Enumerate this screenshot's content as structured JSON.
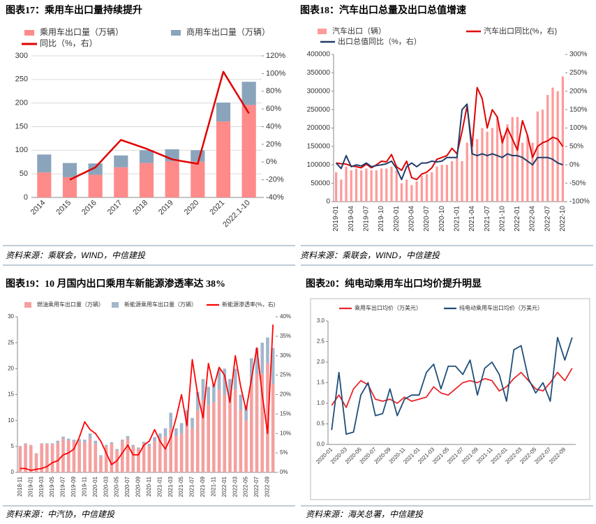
{
  "chart_data": [
    {
      "type": "bar",
      "title": "图表17：乘用车出口量持续提升",
      "source": "资料来源：乘联会，WIND，中信建投",
      "stacked": true,
      "grid": true,
      "categories": [
        "2014",
        "2015",
        "2016",
        "2017",
        "2018",
        "2019",
        "2020",
        "2021",
        "2022.1-10"
      ],
      "series": [
        {
          "name": "乘用车出口量（万辆）",
          "type": "bar",
          "color": "#ff8a8a",
          "values": [
            53,
            43,
            48,
            64,
            73,
            77,
            76,
            161,
            196
          ]
        },
        {
          "name": "商用车出口量（万辆）",
          "type": "bar",
          "color": "#8aa4bc",
          "values": [
            38,
            30,
            24,
            25,
            27,
            25,
            24,
            40,
            49
          ]
        },
        {
          "name": "同比（%，右）",
          "type": "line",
          "axis": "y2",
          "color": "#e00000",
          "values": [
            null,
            -20,
            -6,
            25,
            15,
            3,
            -2,
            102,
            55
          ]
        }
      ],
      "ylim": [
        0,
        300
      ],
      "yticks": [
        0,
        50,
        100,
        150,
        200,
        250,
        300
      ],
      "y2lim": [
        -40,
        120
      ],
      "y2ticks": [
        {
          "value": -40,
          "label": "-40%"
        },
        {
          "value": -20,
          "label": "-20%"
        },
        {
          "value": 0,
          "label": "0%"
        },
        {
          "value": 20,
          "label": "20%"
        },
        {
          "value": 40,
          "label": "40%"
        },
        {
          "value": 60,
          "label": "60%"
        },
        {
          "value": 80,
          "label": "80%"
        },
        {
          "value": 100,
          "label": "100%"
        },
        {
          "value": 120,
          "label": "120%"
        }
      ]
    },
    {
      "type": "bar",
      "title": "图表18：汽车出口总量及出口总值增速",
      "source": "资料来源：乘联会，WIND，中信建投",
      "stacked": false,
      "grid": false,
      "categories": [
        "2019-01",
        null,
        null,
        "2019-04",
        null,
        null,
        "2019-07",
        null,
        null,
        "2019-10",
        null,
        null,
        "2020-01",
        null,
        null,
        "2020-04",
        null,
        null,
        "2020-07",
        null,
        null,
        "2020-10",
        null,
        null,
        "2021-01",
        null,
        null,
        "2021-04",
        null,
        null,
        "2021-07",
        null,
        null,
        "2021-10",
        null,
        null,
        "2022-01",
        null,
        null,
        "2022-04",
        null,
        null,
        "2022-07",
        null,
        null,
        "2022-10"
      ],
      "series": [
        {
          "name": "汽车出口（辆）",
          "type": "bar",
          "color": "#ff9a9a",
          "values": [
            80000,
            60000,
            95000,
            85000,
            90000,
            85000,
            90000,
            85000,
            85000,
            90000,
            90000,
            95000,
            85000,
            50000,
            60000,
            45000,
            55000,
            70000,
            75000,
            80000,
            95000,
            100000,
            100000,
            110000,
            120000,
            110000,
            160000,
            170000,
            170000,
            200000,
            190000,
            200000,
            230000,
            180000,
            210000,
            230000,
            230000,
            160000,
            180000,
            160000,
            245000,
            250000,
            290000,
            310000,
            300000,
            340000
          ]
        },
        {
          "name": "汽车出口同比(%，右)",
          "type": "line",
          "axis": "y2",
          "color": "#e00000",
          "values": [
            5,
            3,
            2,
            -3,
            -5,
            -8,
            2,
            -8,
            0,
            10,
            8,
            28,
            -5,
            -15,
            10,
            -35,
            -40,
            -25,
            -20,
            -8,
            15,
            20,
            25,
            45,
            30,
            90,
            160,
            50,
            210,
            180,
            100,
            150,
            130,
            60,
            100,
            70,
            40,
            120,
            80,
            20,
            50,
            60,
            65,
            75,
            70,
            50
          ]
        },
        {
          "name": "出口总值同比（%，右）",
          "type": "line",
          "axis": "y2",
          "color": "#1f3d6b",
          "values": [
            5,
            -10,
            25,
            -5,
            0,
            -3,
            5,
            -5,
            -2,
            0,
            3,
            10,
            -10,
            -40,
            -5,
            5,
            -5,
            5,
            5,
            10,
            8,
            10,
            20,
            20,
            20,
            150,
            165,
            30,
            25,
            30,
            25,
            30,
            25,
            20,
            30,
            25,
            25,
            20,
            10,
            0,
            20,
            20,
            20,
            15,
            5,
            0
          ]
        }
      ],
      "ylim": [
        0,
        400000
      ],
      "yticks": [
        0,
        50000,
        100000,
        150000,
        200000,
        250000,
        300000,
        350000,
        400000
      ],
      "y2lim": [
        -100,
        300
      ],
      "y2ticks": [
        {
          "value": -100,
          "label": "-100%"
        },
        {
          "value": -50,
          "label": "-50%"
        },
        {
          "value": 0,
          "label": "0%"
        },
        {
          "value": 50,
          "label": "50%"
        },
        {
          "value": 100,
          "label": "100%"
        },
        {
          "value": 150,
          "label": "150%"
        },
        {
          "value": 200,
          "label": "200%"
        },
        {
          "value": 250,
          "label": "250%"
        },
        {
          "value": 300,
          "label": "300%"
        }
      ]
    },
    {
      "type": "bar",
      "title": "图表19：10 月国内出口乘用车新能源渗透率达 38%",
      "source": "资料来源：中汽协，中信建投",
      "stacked": true,
      "grid": false,
      "categories": [
        "2018-11",
        null,
        "2019-01",
        null,
        "2019-03",
        null,
        "2019-05",
        null,
        "2019-07",
        null,
        "2019-09",
        null,
        "2019-11",
        null,
        "2020-01",
        null,
        "2020-03",
        null,
        "2020-05",
        null,
        "2020-07",
        null,
        "2020-09",
        null,
        "2020-11",
        null,
        "2021-01",
        null,
        "2021-03",
        null,
        "2021-05",
        null,
        "2021-07",
        null,
        "2021-09",
        null,
        "2021-11",
        null,
        "2022-01",
        null,
        "2022-03",
        null,
        "2022-05",
        null,
        "2022-07",
        null,
        "2022-09",
        null
      ],
      "series": [
        {
          "name": "燃油乘用车出口量（万辆）",
          "type": "bar",
          "color": "#f4a0a0",
          "values": [
            5.0,
            5.5,
            5.2,
            3.6,
            5.5,
            5.5,
            5.4,
            5.7,
            6.5,
            6.2,
            6.0,
            6.0,
            5.8,
            6.5,
            5.5,
            3.0,
            5.0,
            5.5,
            4.3,
            6.0,
            6.5,
            5.0,
            4.5,
            5.5,
            5.0,
            6.0,
            6.5,
            7.0,
            8.5,
            7.0,
            7.5,
            9.0,
            8.5,
            12,
            14,
            13,
            13.5,
            16,
            15,
            14,
            16,
            12,
            10,
            17,
            19,
            19,
            21,
            17
          ]
        },
        {
          "name": "新能源乘用车出口量（万辆）",
          "type": "bar",
          "color": "#a2b6cc",
          "values": [
            0.1,
            0.1,
            0.1,
            0.1,
            0.1,
            0.1,
            0.2,
            0.4,
            0.4,
            0.3,
            0.3,
            0.4,
            0.5,
            1.0,
            0.6,
            0.3,
            0.3,
            0.3,
            0.2,
            0.3,
            0.5,
            0.3,
            0.3,
            0.4,
            0.5,
            0.8,
            1.0,
            1.5,
            3.0,
            1.5,
            2.0,
            3.0,
            2.0,
            3.5,
            4.0,
            3.5,
            3.5,
            4.0,
            5,
            4,
            4,
            3,
            3,
            5,
            5,
            6,
            5,
            7
          ]
        },
        {
          "name": "新能源渗透率(%，右)",
          "type": "line",
          "axis": "y2",
          "color": "#ff0000",
          "values": [
            1.0,
            1.0,
            0.5,
            0.8,
            1.0,
            1.5,
            2.5,
            3.0,
            4.5,
            5.0,
            6.0,
            9.0,
            13.0,
            11.0,
            10,
            8,
            5,
            2,
            3,
            5,
            7,
            4.5,
            4.5,
            7,
            8,
            11,
            8,
            6,
            9,
            14,
            20,
            12,
            29,
            20,
            14,
            28,
            22,
            27,
            25,
            18,
            30,
            22,
            16,
            24,
            32,
            20,
            10,
            38
          ]
        }
      ],
      "ylim": [
        0,
        30
      ],
      "yticks": [
        0,
        5,
        10,
        15,
        20,
        25,
        30
      ],
      "y2lim": [
        0,
        40
      ],
      "y2ticks": [
        {
          "value": 0,
          "label": "0%"
        },
        {
          "value": 5,
          "label": "5%"
        },
        {
          "value": 10,
          "label": "10%"
        },
        {
          "value": 15,
          "label": "15%"
        },
        {
          "value": 20,
          "label": "20%"
        },
        {
          "value": 25,
          "label": "25%"
        },
        {
          "value": 30,
          "label": "30%"
        },
        {
          "value": 35,
          "label": "35%"
        },
        {
          "value": 40,
          "label": "40%"
        }
      ]
    },
    {
      "type": "line",
      "title": "图表20：纯电动乘用车出口均价提升明显",
      "source": "资料来源：海关总署，中信建投",
      "stacked": false,
      "grid": false,
      "categories": [
        "2020-01",
        null,
        "2020-03",
        null,
        "2020-05",
        null,
        "2020-07",
        null,
        "2020-09",
        null,
        "2020-11",
        null,
        "2021-01",
        null,
        "2021-03",
        null,
        "2021-05",
        null,
        "2021-07",
        null,
        "2021-09",
        null,
        "2021-11",
        null,
        "2022-01",
        null,
        "2022-03",
        null,
        "2022-05",
        null,
        "2022-07",
        null,
        "2022-09",
        null
      ],
      "series": [
        {
          "name": "乘用车出口均价（万美元）",
          "type": "line",
          "color": "#e8262b",
          "values": [
            0.95,
            1.2,
            0.9,
            1.35,
            1.55,
            1.45,
            1.1,
            1.05,
            1.1,
            1.0,
            1.15,
            1.05,
            1.1,
            1.15,
            1.4,
            1.25,
            1.2,
            1.35,
            1.5,
            1.55,
            1.5,
            1.6,
            1.55,
            1.3,
            1.4,
            1.6,
            1.75,
            1.55,
            1.35,
            1.3,
            1.5,
            1.75,
            1.55,
            1.85
          ]
        },
        {
          "name": "纯电动乘用车出口均价（万美元）",
          "type": "line",
          "color": "#1f4e79",
          "values": [
            0.35,
            1.75,
            0.25,
            0.3,
            1.2,
            1.5,
            0.7,
            0.75,
            1.35,
            0.7,
            1.1,
            1.2,
            1.2,
            1.75,
            1.95,
            1.35,
            1.9,
            1.9,
            1.7,
            2.05,
            1.2,
            1.85,
            2.0,
            1.7,
            1.05,
            2.3,
            2.4,
            1.6,
            1.25,
            1.5,
            1.05,
            2.6,
            2.05,
            2.6
          ]
        }
      ],
      "ylim": [
        0,
        3
      ],
      "yticks": [
        {
          "value": 0,
          "label": "0.0"
        },
        0.5,
        {
          "value": 1,
          "label": "1.0"
        },
        1.5,
        {
          "value": 2,
          "label": "2.0"
        },
        2.5,
        {
          "value": 3,
          "label": "3.0"
        }
      ]
    }
  ]
}
